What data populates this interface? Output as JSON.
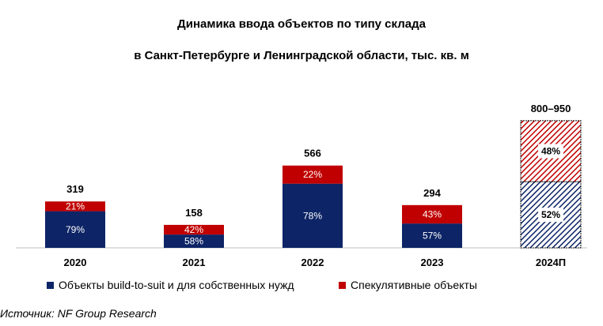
{
  "title_line1": "Динамика ввода объектов по типу склада",
  "title_line2": "в Санкт-Петербурге и Ленинградской области, тыс. кв. м",
  "source": "Источник: NF Group Research",
  "colors": {
    "bts": "#0d2466",
    "spec": "#c00000"
  },
  "chart_data": {
    "type": "bar",
    "stacked": true,
    "categories": [
      "2020",
      "2021",
      "2022",
      "2023",
      "2024П"
    ],
    "totals": [
      319,
      158,
      566,
      294,
      875
    ],
    "total_labels": [
      "319",
      "158",
      "566",
      "294",
      "800–950"
    ],
    "series": [
      {
        "name": "Объекты build-to-suit и для собственных нужд",
        "share_pct": [
          79,
          58,
          78,
          57,
          52
        ],
        "share_labels": [
          "79%",
          "58%",
          "78%",
          "57%",
          "52%"
        ]
      },
      {
        "name": "Спекулятивные объекты",
        "share_pct": [
          21,
          42,
          22,
          43,
          48
        ],
        "share_labels": [
          "21%",
          "42%",
          "22%",
          "43%",
          "48%"
        ]
      }
    ],
    "forecast_index": 4,
    "ylim": [
      0,
      950
    ],
    "grid": false,
    "legend_position": "bottom"
  }
}
